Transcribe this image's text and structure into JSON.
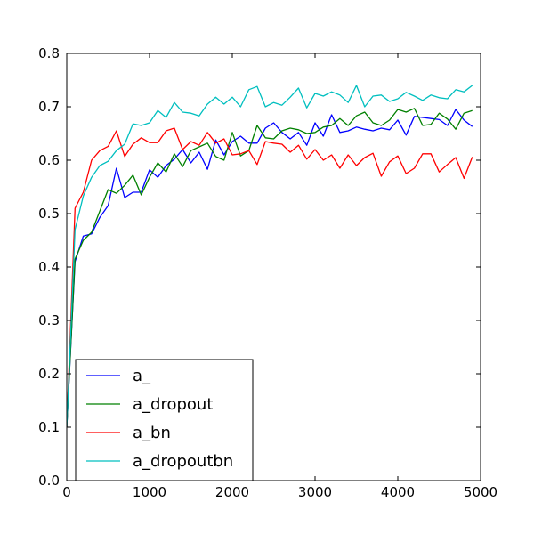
{
  "chart_data": {
    "type": "line",
    "title": "",
    "xlabel": "",
    "ylabel": "",
    "xlim": [
      0,
      5000
    ],
    "ylim": [
      0.0,
      0.8
    ],
    "xticks": [
      0,
      1000,
      2000,
      3000,
      4000,
      5000
    ],
    "xtick_labels": [
      "0",
      "1000",
      "2000",
      "3000",
      "4000",
      "5000"
    ],
    "yticks": [
      0.0,
      0.1,
      0.2,
      0.3,
      0.4,
      0.5,
      0.6,
      0.7,
      0.8
    ],
    "ytick_labels": [
      "0.0",
      "0.1",
      "0.2",
      "0.3",
      "0.4",
      "0.5",
      "0.6",
      "0.7",
      "0.8"
    ],
    "grid": false,
    "legend_position": "lower-left",
    "x": [
      0,
      100,
      200,
      300,
      400,
      500,
      600,
      700,
      800,
      900,
      1000,
      1100,
      1200,
      1300,
      1400,
      1500,
      1600,
      1700,
      1800,
      1900,
      2000,
      2100,
      2200,
      2300,
      2400,
      2500,
      2600,
      2700,
      2800,
      2900,
      3000,
      3100,
      3200,
      3300,
      3400,
      3500,
      3600,
      3700,
      3800,
      3900,
      4000,
      4100,
      4200,
      4300,
      4400,
      4500,
      4600,
      4700,
      4800,
      4900
    ],
    "series": [
      {
        "name": "a_",
        "color": "#0000ff",
        "values": [
          0.1,
          0.41,
          0.458,
          0.462,
          0.493,
          0.515,
          0.585,
          0.53,
          0.54,
          0.54,
          0.582,
          0.568,
          0.59,
          0.602,
          0.62,
          0.595,
          0.615,
          0.583,
          0.638,
          0.61,
          0.635,
          0.645,
          0.632,
          0.632,
          0.66,
          0.67,
          0.652,
          0.64,
          0.652,
          0.628,
          0.67,
          0.645,
          0.685,
          0.652,
          0.655,
          0.662,
          0.658,
          0.655,
          0.66,
          0.657,
          0.675,
          0.647,
          0.682,
          0.68,
          0.678,
          0.676,
          0.665,
          0.695,
          0.675,
          0.663
        ]
      },
      {
        "name": "a_dropout",
        "color": "#008000",
        "values": [
          0.1,
          0.415,
          0.45,
          0.465,
          0.505,
          0.545,
          0.538,
          0.553,
          0.572,
          0.535,
          0.568,
          0.595,
          0.578,
          0.612,
          0.588,
          0.618,
          0.625,
          0.632,
          0.607,
          0.6,
          0.652,
          0.608,
          0.618,
          0.665,
          0.642,
          0.64,
          0.655,
          0.66,
          0.657,
          0.65,
          0.652,
          0.662,
          0.665,
          0.678,
          0.665,
          0.683,
          0.69,
          0.67,
          0.665,
          0.675,
          0.695,
          0.69,
          0.697,
          0.665,
          0.667,
          0.688,
          0.677,
          0.658,
          0.688,
          0.693
        ]
      },
      {
        "name": "a_bn",
        "color": "#ff0000",
        "values": [
          0.1,
          0.51,
          0.54,
          0.6,
          0.618,
          0.626,
          0.655,
          0.607,
          0.63,
          0.642,
          0.633,
          0.633,
          0.655,
          0.66,
          0.62,
          0.635,
          0.628,
          0.652,
          0.632,
          0.64,
          0.61,
          0.612,
          0.618,
          0.592,
          0.635,
          0.632,
          0.63,
          0.615,
          0.628,
          0.602,
          0.62,
          0.6,
          0.61,
          0.585,
          0.61,
          0.59,
          0.605,
          0.613,
          0.57,
          0.597,
          0.608,
          0.575,
          0.585,
          0.612,
          0.612,
          0.578,
          0.592,
          0.605,
          0.566,
          0.606
        ]
      },
      {
        "name": "a_dropoutbn",
        "color": "#00bfbf",
        "values": [
          0.1,
          0.47,
          0.533,
          0.568,
          0.59,
          0.598,
          0.618,
          0.63,
          0.668,
          0.665,
          0.67,
          0.693,
          0.68,
          0.708,
          0.69,
          0.688,
          0.683,
          0.705,
          0.718,
          0.705,
          0.718,
          0.7,
          0.732,
          0.738,
          0.7,
          0.708,
          0.703,
          0.718,
          0.735,
          0.698,
          0.725,
          0.72,
          0.728,
          0.722,
          0.708,
          0.74,
          0.7,
          0.72,
          0.722,
          0.71,
          0.715,
          0.727,
          0.72,
          0.712,
          0.722,
          0.717,
          0.715,
          0.732,
          0.728,
          0.74
        ]
      }
    ]
  }
}
